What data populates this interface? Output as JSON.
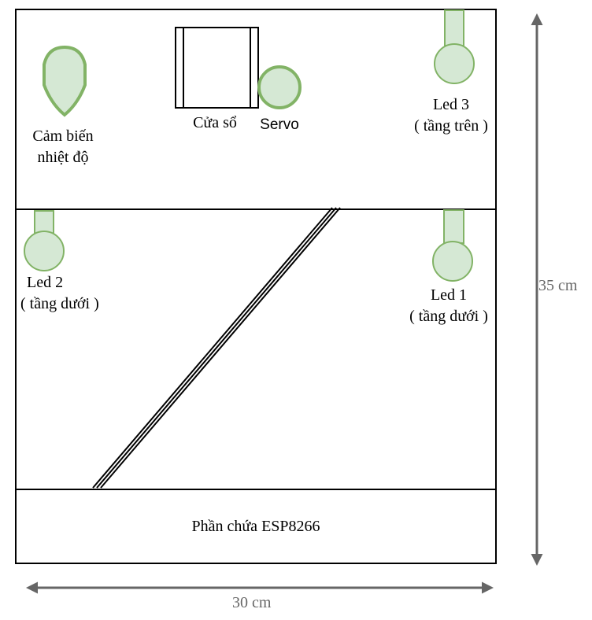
{
  "labels": {
    "temp_sensor": [
      "Cảm biến",
      "nhiệt độ"
    ],
    "window": "Cửa sổ",
    "servo": "Servo",
    "led3": [
      "Led 3",
      "( tầng trên )"
    ],
    "led2": [
      "Led 2",
      "( tầng dưới )"
    ],
    "led1": [
      "Led 1",
      "( tầng dưới )"
    ],
    "esp_section": "Phần chứa ESP8266"
  },
  "dimensions": {
    "height": "35 cm",
    "width": "30 cm"
  },
  "colors": {
    "component_fill": "#d5e8d4",
    "component_stroke": "#82b366",
    "outline": "#000000",
    "dimension_line": "#666666"
  },
  "icons": {
    "led": "led-bulb-icon",
    "servo": "servo-circle-icon",
    "sensor": "shield-sensor-icon",
    "window": "window-frame-icon"
  }
}
